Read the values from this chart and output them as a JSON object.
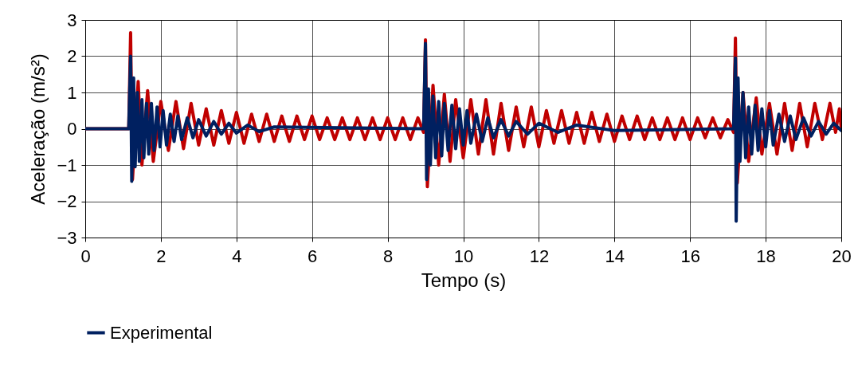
{
  "chart_data": {
    "type": "line",
    "xlabel": "Tempo (s)",
    "ylabel": "Aceleração (m/s²)",
    "xlim": [
      0,
      20
    ],
    "xticks": [
      0,
      2,
      4,
      6,
      8,
      10,
      12,
      14,
      16,
      18,
      20
    ],
    "ylim": [
      -3,
      3
    ],
    "yticks": [
      -3,
      -2,
      -1,
      0,
      1,
      2,
      3
    ],
    "grid": true,
    "legend": "bottom",
    "series": [
      {
        "color": "#c00000",
        "x": [
          0,
          1.15,
          1.2,
          1.25,
          1.4,
          1.5,
          1.65,
          1.8,
          2.0,
          2.2,
          2.4,
          2.6,
          2.8,
          3.0,
          3.2,
          3.4,
          3.6,
          3.8,
          4.0,
          4.2,
          4.4,
          4.6,
          4.8,
          5.0,
          5.2,
          5.4,
          5.6,
          5.8,
          6.0,
          6.2,
          6.4,
          6.6,
          6.8,
          7.0,
          7.2,
          7.4,
          7.6,
          7.8,
          8.0,
          8.2,
          8.4,
          8.6,
          8.8,
          8.95,
          9.0,
          9.05,
          9.2,
          9.35,
          9.5,
          9.65,
          9.8,
          10.0,
          10.2,
          10.4,
          10.6,
          10.8,
          11.0,
          11.2,
          11.4,
          11.6,
          11.8,
          12.0,
          12.2,
          12.4,
          12.6,
          12.8,
          13.0,
          13.2,
          13.4,
          13.6,
          13.8,
          14.0,
          14.2,
          14.4,
          14.6,
          14.8,
          15.0,
          15.2,
          15.4,
          15.6,
          15.8,
          16.0,
          16.2,
          16.4,
          16.6,
          16.8,
          17.0,
          17.15,
          17.2,
          17.25,
          17.4,
          17.55,
          17.75,
          17.9,
          18.1,
          18.3,
          18.5,
          18.7,
          18.9,
          19.1,
          19.3,
          19.5,
          19.7,
          19.85,
          19.95,
          20
        ],
        "values": [
          0,
          0,
          2.65,
          -1.4,
          1.3,
          -1.0,
          1.05,
          -0.9,
          0.75,
          -0.6,
          0.75,
          -0.55,
          0.7,
          -0.45,
          0.55,
          -0.45,
          0.5,
          -0.4,
          0.45,
          -0.4,
          0.4,
          -0.35,
          0.4,
          -0.35,
          0.35,
          -0.35,
          0.35,
          -0.3,
          0.35,
          -0.3,
          0.3,
          -0.3,
          0.3,
          -0.3,
          0.3,
          -0.3,
          0.3,
          -0.3,
          0.3,
          -0.3,
          0.3,
          -0.3,
          0.3,
          -0.1,
          2.45,
          -1.6,
          1.2,
          -1.0,
          0.95,
          -0.9,
          0.8,
          -0.8,
          0.8,
          -0.7,
          0.8,
          -0.7,
          0.7,
          -0.6,
          0.6,
          -0.5,
          0.6,
          -0.5,
          0.5,
          -0.4,
          0.5,
          -0.4,
          0.45,
          -0.4,
          0.45,
          -0.35,
          0.4,
          -0.35,
          0.35,
          -0.3,
          0.35,
          -0.3,
          0.3,
          -0.3,
          0.3,
          -0.3,
          0.3,
          -0.3,
          0.3,
          -0.25,
          0.3,
          -0.25,
          0.25,
          -0.1,
          2.5,
          -1.5,
          1.0,
          -0.9,
          0.85,
          -0.7,
          0.7,
          -0.7,
          0.7,
          -0.6,
          0.7,
          -0.5,
          0.7,
          -0.3,
          0.7,
          -0.1,
          0.55,
          0
        ]
      },
      {
        "name": "Experimental",
        "color": "#002060",
        "x": [
          0,
          1.15,
          1.2,
          1.23,
          1.28,
          1.32,
          1.38,
          1.43,
          1.5,
          1.55,
          1.62,
          1.68,
          1.75,
          1.82,
          1.9,
          1.98,
          2.06,
          2.15,
          2.25,
          2.35,
          2.45,
          2.55,
          2.7,
          2.85,
          3.0,
          3.2,
          3.4,
          3.6,
          3.8,
          4.0,
          4.3,
          4.6,
          5.0,
          8.95,
          9.0,
          9.03,
          9.08,
          9.13,
          9.2,
          9.27,
          9.35,
          9.43,
          9.5,
          9.6,
          9.7,
          9.8,
          9.9,
          10.0,
          10.1,
          10.2,
          10.35,
          10.5,
          10.65,
          10.8,
          11.0,
          11.2,
          11.4,
          11.7,
          12.0,
          12.5,
          13.0,
          14.0,
          17.15,
          17.2,
          17.22,
          17.27,
          17.32,
          17.4,
          17.47,
          17.55,
          17.63,
          17.72,
          17.8,
          17.9,
          18.0,
          18.1,
          18.2,
          18.35,
          18.5,
          18.65,
          18.8,
          19.0,
          19.2,
          19.4,
          19.6,
          19.8,
          20
        ],
        "values": [
          0,
          0,
          2.0,
          -1.45,
          1.4,
          -1.05,
          1.0,
          -0.9,
          0.8,
          -0.8,
          0.7,
          -0.7,
          0.7,
          -0.6,
          0.6,
          -0.5,
          0.5,
          -0.45,
          0.4,
          -0.35,
          0.35,
          -0.3,
          0.3,
          -0.25,
          0.25,
          -0.2,
          0.2,
          -0.15,
          0.15,
          -0.12,
          0.1,
          -0.08,
          0.05,
          0,
          2.35,
          -1.4,
          1.1,
          -1.0,
          0.9,
          -0.8,
          0.75,
          -0.75,
          0.7,
          -0.6,
          0.65,
          -0.55,
          0.55,
          -0.45,
          0.5,
          -0.4,
          0.4,
          -0.35,
          0.3,
          -0.25,
          0.25,
          -0.2,
          0.2,
          -0.15,
          0.15,
          -0.1,
          0.1,
          -0.05,
          0,
          1.95,
          -2.55,
          1.4,
          -0.9,
          1.0,
          -0.8,
          0.6,
          -0.7,
          0.65,
          -0.6,
          0.55,
          -0.5,
          0.5,
          -0.45,
          0.4,
          -0.35,
          0.35,
          -0.3,
          0.3,
          -0.2,
          0.2,
          -0.15,
          0.15,
          -0.05
        ]
      }
    ]
  }
}
